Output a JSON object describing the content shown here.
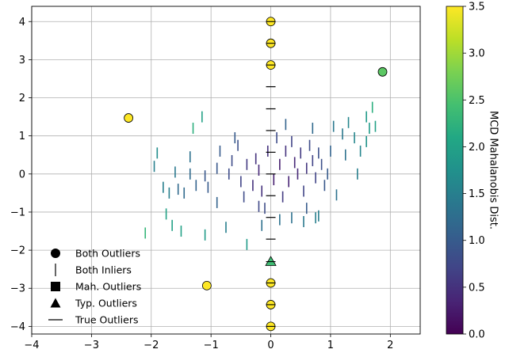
{
  "chart_data": {
    "type": "scatter",
    "title": "",
    "xlabel": "",
    "ylabel": "",
    "xlim": [
      -4,
      2.5
    ],
    "ylim": [
      -4.2,
      4.4
    ],
    "grid": true,
    "x_ticks": [
      -4,
      -3,
      -2,
      -1,
      0,
      1,
      2
    ],
    "y_ticks": [
      -4,
      -3,
      -2,
      -1,
      0,
      1,
      2,
      3,
      4
    ],
    "x_tick_labels": [
      "−4",
      "−3",
      "−2",
      "−1",
      "0",
      "1",
      "2"
    ],
    "y_tick_labels": [
      "−4",
      "−3",
      "−2",
      "−1",
      "0",
      "1",
      "2",
      "3",
      "4"
    ],
    "colorbar": {
      "label": "MCD Mahalanobis Dist.",
      "range": [
        0.0,
        3.5
      ],
      "ticks": [
        0.0,
        0.5,
        1.0,
        1.5,
        2.0,
        2.5,
        3.0,
        3.5
      ],
      "tick_labels": [
        "0.0",
        "0.5",
        "1.0",
        "1.5",
        "2.0",
        "2.5",
        "3.0",
        "3.5"
      ],
      "colormap": "viridis"
    },
    "legend": {
      "placement": "lower-left",
      "entries": [
        {
          "marker": "circle",
          "label": "Both Outliers"
        },
        {
          "marker": "vline",
          "label": "Both Inliers"
        },
        {
          "marker": "square",
          "label": "Mah. Outliers"
        },
        {
          "marker": "triangle",
          "label": "Typ. Outliers"
        },
        {
          "marker": "hline",
          "label": "True Outliers"
        }
      ]
    },
    "series": [
      {
        "name": "Both Outliers",
        "marker": "circle",
        "points": [
          {
            "x": 0,
            "y": 4.0,
            "d": 3.5
          },
          {
            "x": 0,
            "y": 3.43,
            "d": 3.5
          },
          {
            "x": 0,
            "y": 2.86,
            "d": 3.5
          },
          {
            "x": 0,
            "y": -2.86,
            "d": 3.5
          },
          {
            "x": 0,
            "y": -3.43,
            "d": 3.5
          },
          {
            "x": 0,
            "y": -4.0,
            "d": 3.5
          },
          {
            "x": -2.38,
            "y": 1.47,
            "d": 3.5
          },
          {
            "x": 1.87,
            "y": 2.68,
            "d": 2.6
          },
          {
            "x": -1.07,
            "y": -2.93,
            "d": 3.5
          }
        ]
      },
      {
        "name": "Typ. Outliers",
        "marker": "triangle",
        "points": [
          {
            "x": 0,
            "y": -2.3,
            "d": 2.4
          }
        ]
      },
      {
        "name": "True Outliers",
        "marker": "hline",
        "points": [
          {
            "x": 0,
            "y": 2.29
          },
          {
            "x": 0,
            "y": 1.71
          },
          {
            "x": 0,
            "y": 1.14
          },
          {
            "x": 0,
            "y": 0.57
          },
          {
            "x": 0,
            "y": 0.0
          },
          {
            "x": 0,
            "y": -0.57
          },
          {
            "x": 0,
            "y": -1.14
          },
          {
            "x": 0,
            "y": -1.71
          }
        ]
      },
      {
        "name": "Both Inliers",
        "marker": "vline",
        "points": [
          {
            "x": -1.15,
            "y": 1.5,
            "d": 2.0
          },
          {
            "x": -1.3,
            "y": 1.2,
            "d": 2.2
          },
          {
            "x": -1.9,
            "y": 0.55,
            "d": 1.7
          },
          {
            "x": -1.95,
            "y": 0.2,
            "d": 1.5
          },
          {
            "x": -1.6,
            "y": 0.05,
            "d": 1.4
          },
          {
            "x": -1.35,
            "y": 0.45,
            "d": 1.3
          },
          {
            "x": -1.35,
            "y": 0.0,
            "d": 1.2
          },
          {
            "x": -1.55,
            "y": -0.4,
            "d": 1.2
          },
          {
            "x": -1.8,
            "y": -0.35,
            "d": 1.5
          },
          {
            "x": -1.7,
            "y": -0.5,
            "d": 1.5
          },
          {
            "x": -1.45,
            "y": -0.5,
            "d": 1.2
          },
          {
            "x": -1.25,
            "y": -0.3,
            "d": 1.1
          },
          {
            "x": -1.05,
            "y": -0.35,
            "d": 1.0
          },
          {
            "x": -1.1,
            "y": -0.05,
            "d": 0.95
          },
          {
            "x": -0.9,
            "y": 0.15,
            "d": 0.95
          },
          {
            "x": -0.85,
            "y": 0.6,
            "d": 1.0
          },
          {
            "x": -0.7,
            "y": 0.0,
            "d": 0.8
          },
          {
            "x": -0.65,
            "y": 0.35,
            "d": 0.8
          },
          {
            "x": -0.55,
            "y": 0.75,
            "d": 0.85
          },
          {
            "x": -0.5,
            "y": -0.2,
            "d": 0.7
          },
          {
            "x": -0.45,
            "y": -0.6,
            "d": 0.8
          },
          {
            "x": -0.4,
            "y": 0.25,
            "d": 0.6
          },
          {
            "x": -0.3,
            "y": -0.3,
            "d": 0.5
          },
          {
            "x": -0.25,
            "y": 0.4,
            "d": 0.5
          },
          {
            "x": -0.2,
            "y": 0.1,
            "d": 0.4
          },
          {
            "x": -0.15,
            "y": -0.45,
            "d": 0.5
          },
          {
            "x": -0.1,
            "y": -0.9,
            "d": 0.8
          },
          {
            "x": -0.05,
            "y": 0.6,
            "d": 0.5
          },
          {
            "x": 0.05,
            "y": -0.15,
            "d": 0.3
          },
          {
            "x": 0.1,
            "y": 0.95,
            "d": 0.8
          },
          {
            "x": 0.15,
            "y": 0.25,
            "d": 0.3
          },
          {
            "x": 0.2,
            "y": -0.6,
            "d": 0.6
          },
          {
            "x": 0.25,
            "y": 0.6,
            "d": 0.5
          },
          {
            "x": 0.3,
            "y": -0.2,
            "d": 0.35
          },
          {
            "x": 0.35,
            "y": 0.85,
            "d": 0.7
          },
          {
            "x": 0.4,
            "y": 0.3,
            "d": 0.4
          },
          {
            "x": 0.45,
            "y": 0.0,
            "d": 0.4
          },
          {
            "x": 0.5,
            "y": 0.55,
            "d": 0.6
          },
          {
            "x": 0.55,
            "y": -0.45,
            "d": 0.7
          },
          {
            "x": 0.6,
            "y": 0.15,
            "d": 0.55
          },
          {
            "x": 0.65,
            "y": 0.75,
            "d": 0.8
          },
          {
            "x": 0.7,
            "y": 0.35,
            "d": 0.7
          },
          {
            "x": 0.75,
            "y": -0.1,
            "d": 0.7
          },
          {
            "x": 0.8,
            "y": 0.55,
            "d": 0.85
          },
          {
            "x": 0.85,
            "y": 0.25,
            "d": 0.85
          },
          {
            "x": 0.9,
            "y": -0.3,
            "d": 0.95
          },
          {
            "x": 0.6,
            "y": -0.9,
            "d": 1.0
          },
          {
            "x": 0.7,
            "y": 1.2,
            "d": 1.2
          },
          {
            "x": 0.95,
            "y": 0.0,
            "d": 1.0
          },
          {
            "x": 1.0,
            "y": 0.6,
            "d": 1.1
          },
          {
            "x": 1.05,
            "y": 1.25,
            "d": 1.4
          },
          {
            "x": 1.1,
            "y": -0.55,
            "d": 1.3
          },
          {
            "x": 1.2,
            "y": 1.05,
            "d": 1.4
          },
          {
            "x": 1.25,
            "y": 0.5,
            "d": 1.3
          },
          {
            "x": 1.3,
            "y": 1.35,
            "d": 1.6
          },
          {
            "x": 1.4,
            "y": 0.95,
            "d": 1.6
          },
          {
            "x": 1.5,
            "y": 0.6,
            "d": 1.6
          },
          {
            "x": 1.45,
            "y": -0.0,
            "d": 1.5
          },
          {
            "x": 1.6,
            "y": 1.5,
            "d": 1.9
          },
          {
            "x": 1.65,
            "y": 1.2,
            "d": 1.9
          },
          {
            "x": 1.6,
            "y": 0.85,
            "d": 1.8
          },
          {
            "x": 1.7,
            "y": 1.75,
            "d": 2.2
          },
          {
            "x": 1.75,
            "y": 1.25,
            "d": 2.0
          },
          {
            "x": 0.15,
            "y": -1.2,
            "d": 1.3
          },
          {
            "x": 0.55,
            "y": -1.25,
            "d": 1.4
          },
          {
            "x": 0.75,
            "y": -1.15,
            "d": 1.5
          },
          {
            "x": 0.8,
            "y": -1.1,
            "d": 1.5
          },
          {
            "x": 0.35,
            "y": -1.15,
            "d": 1.3
          },
          {
            "x": -0.15,
            "y": -1.35,
            "d": 1.3
          },
          {
            "x": -0.4,
            "y": -1.85,
            "d": 1.9
          },
          {
            "x": -1.1,
            "y": -1.6,
            "d": 1.9
          },
          {
            "x": -1.5,
            "y": -1.5,
            "d": 2.0
          },
          {
            "x": -1.65,
            "y": -1.35,
            "d": 2.0
          },
          {
            "x": -1.75,
            "y": -1.05,
            "d": 2.0
          },
          {
            "x": -2.1,
            "y": -1.55,
            "d": 2.3
          },
          {
            "x": -0.6,
            "y": 0.95,
            "d": 1.0
          },
          {
            "x": -0.9,
            "y": -0.75,
            "d": 1.1
          },
          {
            "x": -0.75,
            "y": -1.4,
            "d": 1.5
          },
          {
            "x": -0.2,
            "y": -0.85,
            "d": 0.75
          },
          {
            "x": 0.25,
            "y": 1.3,
            "d": 1.1
          }
        ]
      }
    ]
  }
}
